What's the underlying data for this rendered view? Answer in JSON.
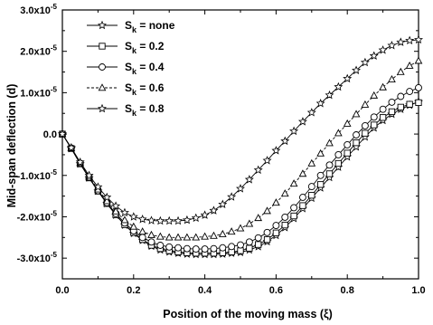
{
  "chart_data": {
    "type": "line",
    "xlabel": "Position of the moving mass (ξ)",
    "ylabel": "Mid-span deflection  (d)",
    "xlim": [
      0.0,
      1.0
    ],
    "ylim": [
      -3.5e-05,
      3e-05
    ],
    "x_ticks": [
      "0.0",
      "0.2",
      "0.4",
      "0.6",
      "0.8",
      "1.0"
    ],
    "y_ticks": [
      {
        "value": 3e-05,
        "mant": "3.0x10",
        "exp": "-5"
      },
      {
        "value": 2e-05,
        "mant": "2.0x10",
        "exp": "-5"
      },
      {
        "value": 1e-05,
        "mant": "1.0x10",
        "exp": "-5"
      },
      {
        "value": 0.0,
        "mant": "0.0",
        "exp": ""
      },
      {
        "value": -1e-05,
        "mant": "-1.0x10",
        "exp": "-5"
      },
      {
        "value": -2e-05,
        "mant": "-2.0x10",
        "exp": "-5"
      },
      {
        "value": -3e-05,
        "mant": "-3.0x10",
        "exp": "-5"
      }
    ],
    "legend_position": "top-left",
    "x": [
      0.0,
      0.025,
      0.05,
      0.075,
      0.1,
      0.125,
      0.15,
      0.175,
      0.2,
      0.225,
      0.25,
      0.275,
      0.3,
      0.325,
      0.35,
      0.375,
      0.4,
      0.425,
      0.45,
      0.475,
      0.5,
      0.525,
      0.55,
      0.575,
      0.6,
      0.625,
      0.65,
      0.675,
      0.7,
      0.725,
      0.75,
      0.775,
      0.8,
      0.825,
      0.85,
      0.875,
      0.9,
      0.925,
      0.95,
      0.975,
      1.0
    ],
    "series": [
      {
        "name": "none",
        "marker": "star",
        "values": [
          0.0,
          -0.35,
          -0.72,
          -1.06,
          -1.38,
          -1.68,
          -1.96,
          -2.2,
          -2.4,
          -2.57,
          -2.71,
          -2.8,
          -2.85,
          -2.88,
          -2.9,
          -2.91,
          -2.91,
          -2.91,
          -2.9,
          -2.88,
          -2.86,
          -2.8,
          -2.72,
          -2.6,
          -2.45,
          -2.26,
          -2.04,
          -1.8,
          -1.55,
          -1.3,
          -1.05,
          -0.8,
          -0.55,
          -0.31,
          -0.07,
          0.15,
          0.33,
          0.48,
          0.6,
          0.7,
          0.78
        ]
      },
      {
        "name": "0.2",
        "marker": "square",
        "values": [
          0.0,
          -0.35,
          -0.72,
          -1.06,
          -1.38,
          -1.68,
          -1.95,
          -2.19,
          -2.38,
          -2.55,
          -2.69,
          -2.77,
          -2.82,
          -2.85,
          -2.87,
          -2.88,
          -2.88,
          -2.88,
          -2.87,
          -2.85,
          -2.82,
          -2.76,
          -2.67,
          -2.55,
          -2.39,
          -2.2,
          -1.98,
          -1.73,
          -1.48,
          -1.22,
          -0.96,
          -0.71,
          -0.46,
          -0.21,
          0.02,
          0.22,
          0.4,
          0.54,
          0.65,
          0.72,
          0.76
        ]
      },
      {
        "name": "0.4",
        "marker": "circle",
        "values": [
          0.0,
          -0.34,
          -0.71,
          -1.05,
          -1.37,
          -1.66,
          -1.92,
          -2.15,
          -2.34,
          -2.5,
          -2.61,
          -2.69,
          -2.73,
          -2.75,
          -2.77,
          -2.78,
          -2.78,
          -2.77,
          -2.75,
          -2.72,
          -2.68,
          -2.61,
          -2.51,
          -2.38,
          -2.21,
          -2.01,
          -1.78,
          -1.53,
          -1.27,
          -1.0,
          -0.75,
          -0.5,
          -0.26,
          -0.02,
          0.2,
          0.41,
          0.6,
          0.77,
          0.91,
          1.03,
          1.12
        ]
      },
      {
        "name": "0.6",
        "marker": "triangle",
        "values": [
          0.0,
          -0.34,
          -0.7,
          -1.03,
          -1.34,
          -1.62,
          -1.87,
          -2.08,
          -2.24,
          -2.36,
          -2.44,
          -2.48,
          -2.5,
          -2.5,
          -2.5,
          -2.5,
          -2.48,
          -2.46,
          -2.42,
          -2.36,
          -2.28,
          -2.17,
          -2.03,
          -1.86,
          -1.66,
          -1.44,
          -1.2,
          -0.96,
          -0.71,
          -0.47,
          -0.22,
          0.02,
          0.25,
          0.48,
          0.71,
          0.93,
          1.13,
          1.32,
          1.5,
          1.65,
          1.77
        ]
      },
      {
        "name": "0.8",
        "marker": "star",
        "values": [
          0.0,
          -0.33,
          -0.68,
          -1.0,
          -1.28,
          -1.53,
          -1.74,
          -1.9,
          -2.0,
          -2.06,
          -2.09,
          -2.1,
          -2.1,
          -2.1,
          -2.08,
          -2.03,
          -1.96,
          -1.85,
          -1.7,
          -1.52,
          -1.32,
          -1.1,
          -0.87,
          -0.64,
          -0.4,
          -0.17,
          0.07,
          0.3,
          0.52,
          0.74,
          0.94,
          1.14,
          1.34,
          1.54,
          1.73,
          1.89,
          2.03,
          2.14,
          2.22,
          2.26,
          2.28
        ]
      }
    ],
    "values_scale": 1e-05,
    "legend_prefix": "S",
    "legend_sub": "k",
    "legend_eq": " = "
  }
}
